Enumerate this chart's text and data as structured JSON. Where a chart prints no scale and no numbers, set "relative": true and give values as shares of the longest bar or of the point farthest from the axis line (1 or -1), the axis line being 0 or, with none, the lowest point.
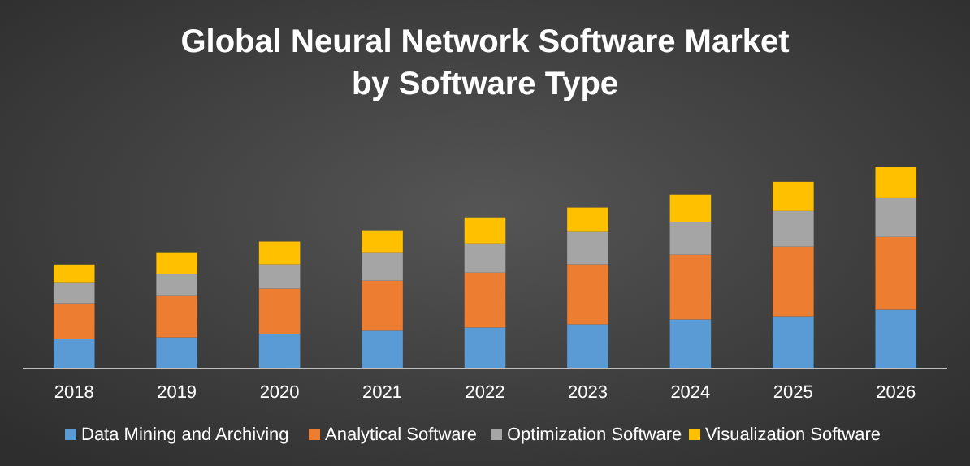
{
  "chart_data": {
    "type": "bar",
    "title": "Global Neural Network Software Market\nby Software Type",
    "stacked": true,
    "relative": true,
    "legend": "bottom",
    "grid": false,
    "categories": [
      "2018",
      "2019",
      "2020",
      "2021",
      "2022",
      "2023",
      "2024",
      "2025",
      "2026"
    ],
    "series": [
      {
        "name": "Data Mining and Archiving",
        "color": "#5b9bd5",
        "values": [
          0.147,
          0.155,
          0.172,
          0.188,
          0.204,
          0.22,
          0.244,
          0.26,
          0.292
        ]
      },
      {
        "name": "Analytical Software",
        "color": "#ed7d31",
        "values": [
          0.177,
          0.209,
          0.225,
          0.249,
          0.273,
          0.298,
          0.322,
          0.346,
          0.362
        ]
      },
      {
        "name": "Optimization Software",
        "color": "#a5a5a5",
        "values": [
          0.105,
          0.105,
          0.121,
          0.137,
          0.145,
          0.161,
          0.161,
          0.177,
          0.193
        ]
      },
      {
        "name": "Visualization Software",
        "color": "#ffc000",
        "values": [
          0.088,
          0.105,
          0.113,
          0.113,
          0.129,
          0.121,
          0.137,
          0.145,
          0.153
        ]
      }
    ]
  }
}
